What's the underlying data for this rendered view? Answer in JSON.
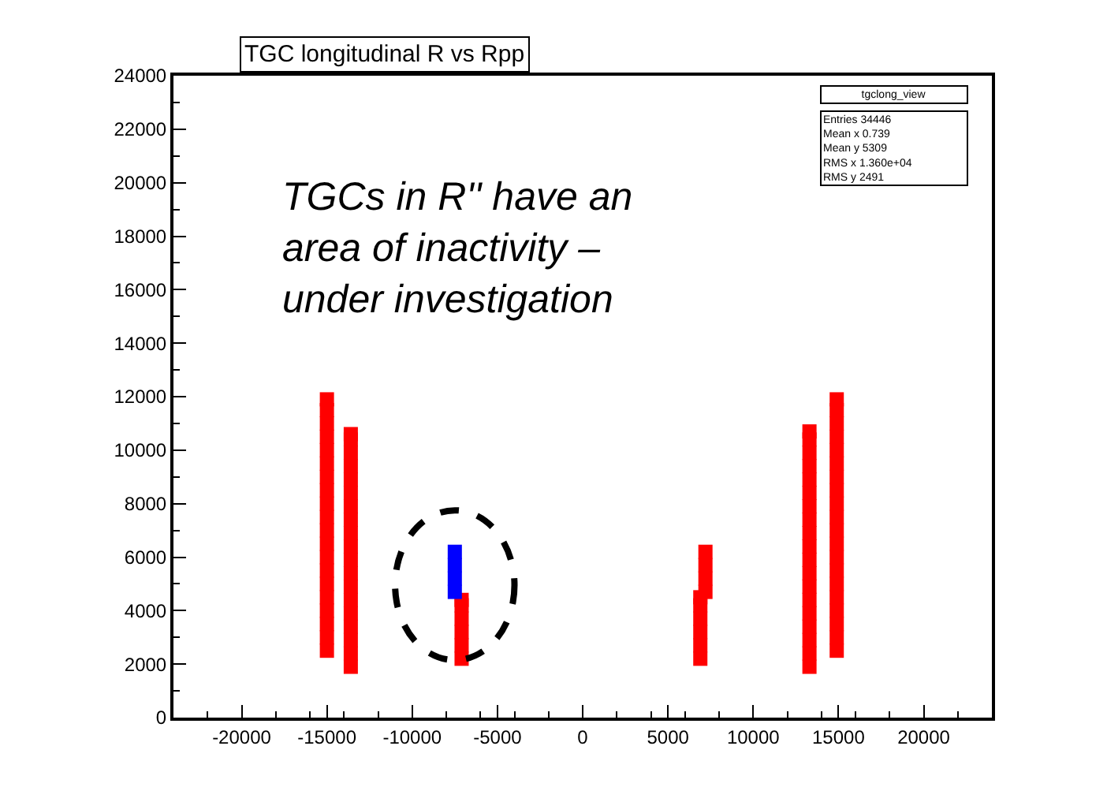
{
  "chart_data": {
    "type": "scatter",
    "title": "TGC longitudinal R vs Rpp",
    "xlim": [
      -24000,
      24000
    ],
    "ylim": [
      0,
      24000
    ],
    "xticks": [
      -20000,
      -15000,
      -10000,
      -5000,
      0,
      5000,
      10000,
      15000,
      20000
    ],
    "yticks": [
      0,
      2000,
      4000,
      6000,
      8000,
      10000,
      12000,
      14000,
      16000,
      18000,
      20000,
      22000,
      24000
    ],
    "marker": "square",
    "series": [
      {
        "color": "#ff0000",
        "x": [
          -15000,
          -15000,
          -15000,
          -15000,
          -15000,
          -15000,
          -15000,
          -15000,
          -15000,
          -15000,
          -15000,
          -15000,
          -15000,
          -15000,
          -15000,
          -15000,
          -15000,
          -15000,
          -15000,
          -15000,
          -13600,
          -13600,
          -13600,
          -13600,
          -13600,
          -13600,
          -13600,
          -13600,
          -13600,
          -13600,
          -13600,
          -13600,
          -13600,
          -13600,
          -13600,
          -13600,
          -13600,
          -13600,
          -13600,
          -7100,
          -7100,
          -7100,
          -7100,
          -7100,
          -7100,
          6900,
          6900,
          6900,
          6900,
          6900,
          6900,
          7200,
          7200,
          7200,
          7200,
          13300,
          13300,
          13300,
          13300,
          13300,
          13300,
          13300,
          13300,
          13300,
          13300,
          13300,
          13300,
          13300,
          13300,
          13300,
          13300,
          13300,
          13300,
          13300,
          14900,
          14900,
          14900,
          14900,
          14900,
          14900,
          14900,
          14900,
          14900,
          14900,
          14900,
          14900,
          14900,
          14900,
          14900,
          14900,
          14900,
          14900,
          14900,
          14900
        ],
        "values": [
          2500,
          3000,
          3500,
          4000,
          4500,
          5000,
          5500,
          6000,
          6500,
          7000,
          7500,
          8000,
          8500,
          9000,
          9500,
          10000,
          10500,
          11000,
          11500,
          11900,
          1900,
          2400,
          2900,
          3400,
          3900,
          4400,
          4900,
          5400,
          5900,
          6400,
          6900,
          7400,
          7900,
          8400,
          8900,
          9400,
          9900,
          10400,
          10600,
          2200,
          2700,
          3200,
          3700,
          4200,
          4400,
          2200,
          2700,
          3200,
          3700,
          4200,
          4500,
          4700,
          5200,
          5700,
          6200,
          1900,
          2400,
          2900,
          3400,
          3900,
          4400,
          4900,
          5400,
          5900,
          6400,
          6900,
          7400,
          7900,
          8400,
          8900,
          9400,
          9900,
          10400,
          10700,
          2500,
          3000,
          3500,
          4000,
          4500,
          5000,
          5500,
          6000,
          6500,
          7000,
          7500,
          8000,
          8500,
          9000,
          9500,
          10000,
          10500,
          11000,
          11500,
          11900
        ]
      },
      {
        "color": "#0000ff",
        "x": [
          -7500,
          -7500,
          -7500,
          -7500
        ],
        "values": [
          4700,
          5200,
          5700,
          6200
        ]
      }
    ],
    "annotations": [
      "TGCs in R'' have an\narea of inactivity –\nunder investigation",
      "tgclong_view",
      "Entries 34446\nMean x 0.739\nMean y 5309\nRMS x 1.360e+04\nRMS y 2491"
    ]
  }
}
